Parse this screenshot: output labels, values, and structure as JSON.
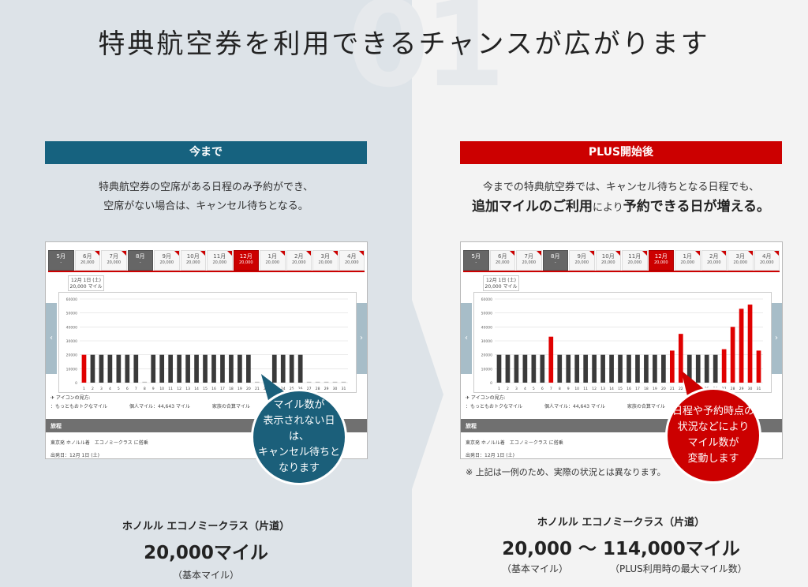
{
  "header": {
    "number": "01",
    "headline": "特典航空券を利用できるチャンスが広がります"
  },
  "left": {
    "title": "今まで",
    "desc_line1": "特典航空券の空席がある日程のみ予約ができ、",
    "desc_line2": "空席がない場合は、キャンセル待ちとなる。",
    "bubble_line1": "マイル数が",
    "bubble_line2": "表示されない日は、",
    "bubble_line3": "キャンセル待ちと",
    "bubble_line4": "なります",
    "route": "ホノルル エコノミークラス（片道）",
    "miles": "20,000マイル",
    "sub": "（基本マイル）"
  },
  "right": {
    "title": "PLUS開始後",
    "desc_line1": "今までの特典航空券では、キャンセル待ちとなる日程でも、",
    "desc_strong1": "追加マイルのご利用",
    "desc_mid": "により",
    "desc_strong2": "予約できる日が増える。",
    "bubble_line1": "日程や予約時点の",
    "bubble_line2": "状況などにより",
    "bubble_line3": "マイル数が",
    "bubble_line4": "変動します",
    "note": "※ 上記は一例のため、実際の状況とは異なります。",
    "route": "ホノルル エコノミークラス（片道）",
    "miles": "20,000 ～ 114,000マイル",
    "sub1": "（基本マイル）",
    "sub2": "（PLUS利用時の最大マイル数）"
  },
  "panel": {
    "tabs": [
      {
        "m": "5月",
        "s": "-",
        "style": "dark"
      },
      {
        "m": "6月",
        "s": "20,000",
        "style": "normal"
      },
      {
        "m": "7月",
        "s": "20,000",
        "style": "normal"
      },
      {
        "m": "8月",
        "s": "-",
        "style": "dark"
      },
      {
        "m": "9月",
        "s": "20,000",
        "style": "normal"
      },
      {
        "m": "10月",
        "s": "20,000",
        "style": "normal"
      },
      {
        "m": "11月",
        "s": "20,000",
        "style": "normal"
      },
      {
        "m": "12月",
        "s": "20,000",
        "style": "sel"
      },
      {
        "m": "1月",
        "s": "20,000",
        "style": "normal"
      },
      {
        "m": "2月",
        "s": "20,000",
        "style": "normal"
      },
      {
        "m": "3月",
        "s": "20,000",
        "style": "normal"
      },
      {
        "m": "4月",
        "s": "20,000",
        "style": "normal"
      }
    ],
    "date_line1": "12月 1日 (土)",
    "date_line2": "20,000 マイル",
    "legend_title": "アイコンの見方:",
    "legend1": "：もっともおトクなマイル",
    "legend2": "個人マイル：44,643 マイル",
    "legend3": "家族の合算マイル",
    "travel_header": "旅程",
    "travel_line1": "東京発 ホノルル着　エコノミークラス に搭乗",
    "travel_line2": "出発日：12月 1日 (土)"
  },
  "chart_left": {
    "type": "bar",
    "y_ticks": [
      "60000",
      "50000",
      "40000",
      "30000",
      "20000",
      "10000",
      "0"
    ],
    "ylim": [
      0,
      60000
    ],
    "days": [
      "1",
      "2",
      "3",
      "4",
      "5",
      "6",
      "7",
      "8",
      "9",
      "10",
      "11",
      "12",
      "13",
      "14",
      "15",
      "16",
      "17",
      "18",
      "19",
      "20",
      "21",
      "22",
      "23",
      "24",
      "25",
      "26",
      "27",
      "28",
      "29",
      "30",
      "31"
    ],
    "values": [
      20000,
      20000,
      20000,
      20000,
      20000,
      20000,
      20000,
      0,
      20000,
      20000,
      20000,
      20000,
      20000,
      20000,
      20000,
      20000,
      20000,
      20000,
      20000,
      20000,
      0,
      0,
      20000,
      20000,
      20000,
      20000,
      0,
      0,
      0,
      0,
      0
    ],
    "highlight": [
      1
    ]
  },
  "chart_right": {
    "type": "bar",
    "y_ticks": [
      "60000",
      "50000",
      "40000",
      "30000",
      "20000",
      "10000",
      "0"
    ],
    "ylim": [
      0,
      60000
    ],
    "days": [
      "1",
      "2",
      "3",
      "4",
      "5",
      "6",
      "7",
      "8",
      "9",
      "10",
      "11",
      "12",
      "13",
      "14",
      "15",
      "16",
      "17",
      "18",
      "19",
      "20",
      "21",
      "22",
      "23",
      "24",
      "25",
      "26",
      "27",
      "28",
      "29",
      "30",
      "31"
    ],
    "values": [
      20000,
      20000,
      20000,
      20000,
      20000,
      20000,
      33000,
      20000,
      20000,
      20000,
      20000,
      20000,
      20000,
      20000,
      20000,
      20000,
      20000,
      20000,
      20000,
      20000,
      23000,
      35000,
      20000,
      20000,
      20000,
      20000,
      24000,
      40000,
      53000,
      56000,
      23000
    ],
    "highlight": [
      7,
      21,
      22,
      27,
      28,
      29,
      30,
      31
    ]
  }
}
